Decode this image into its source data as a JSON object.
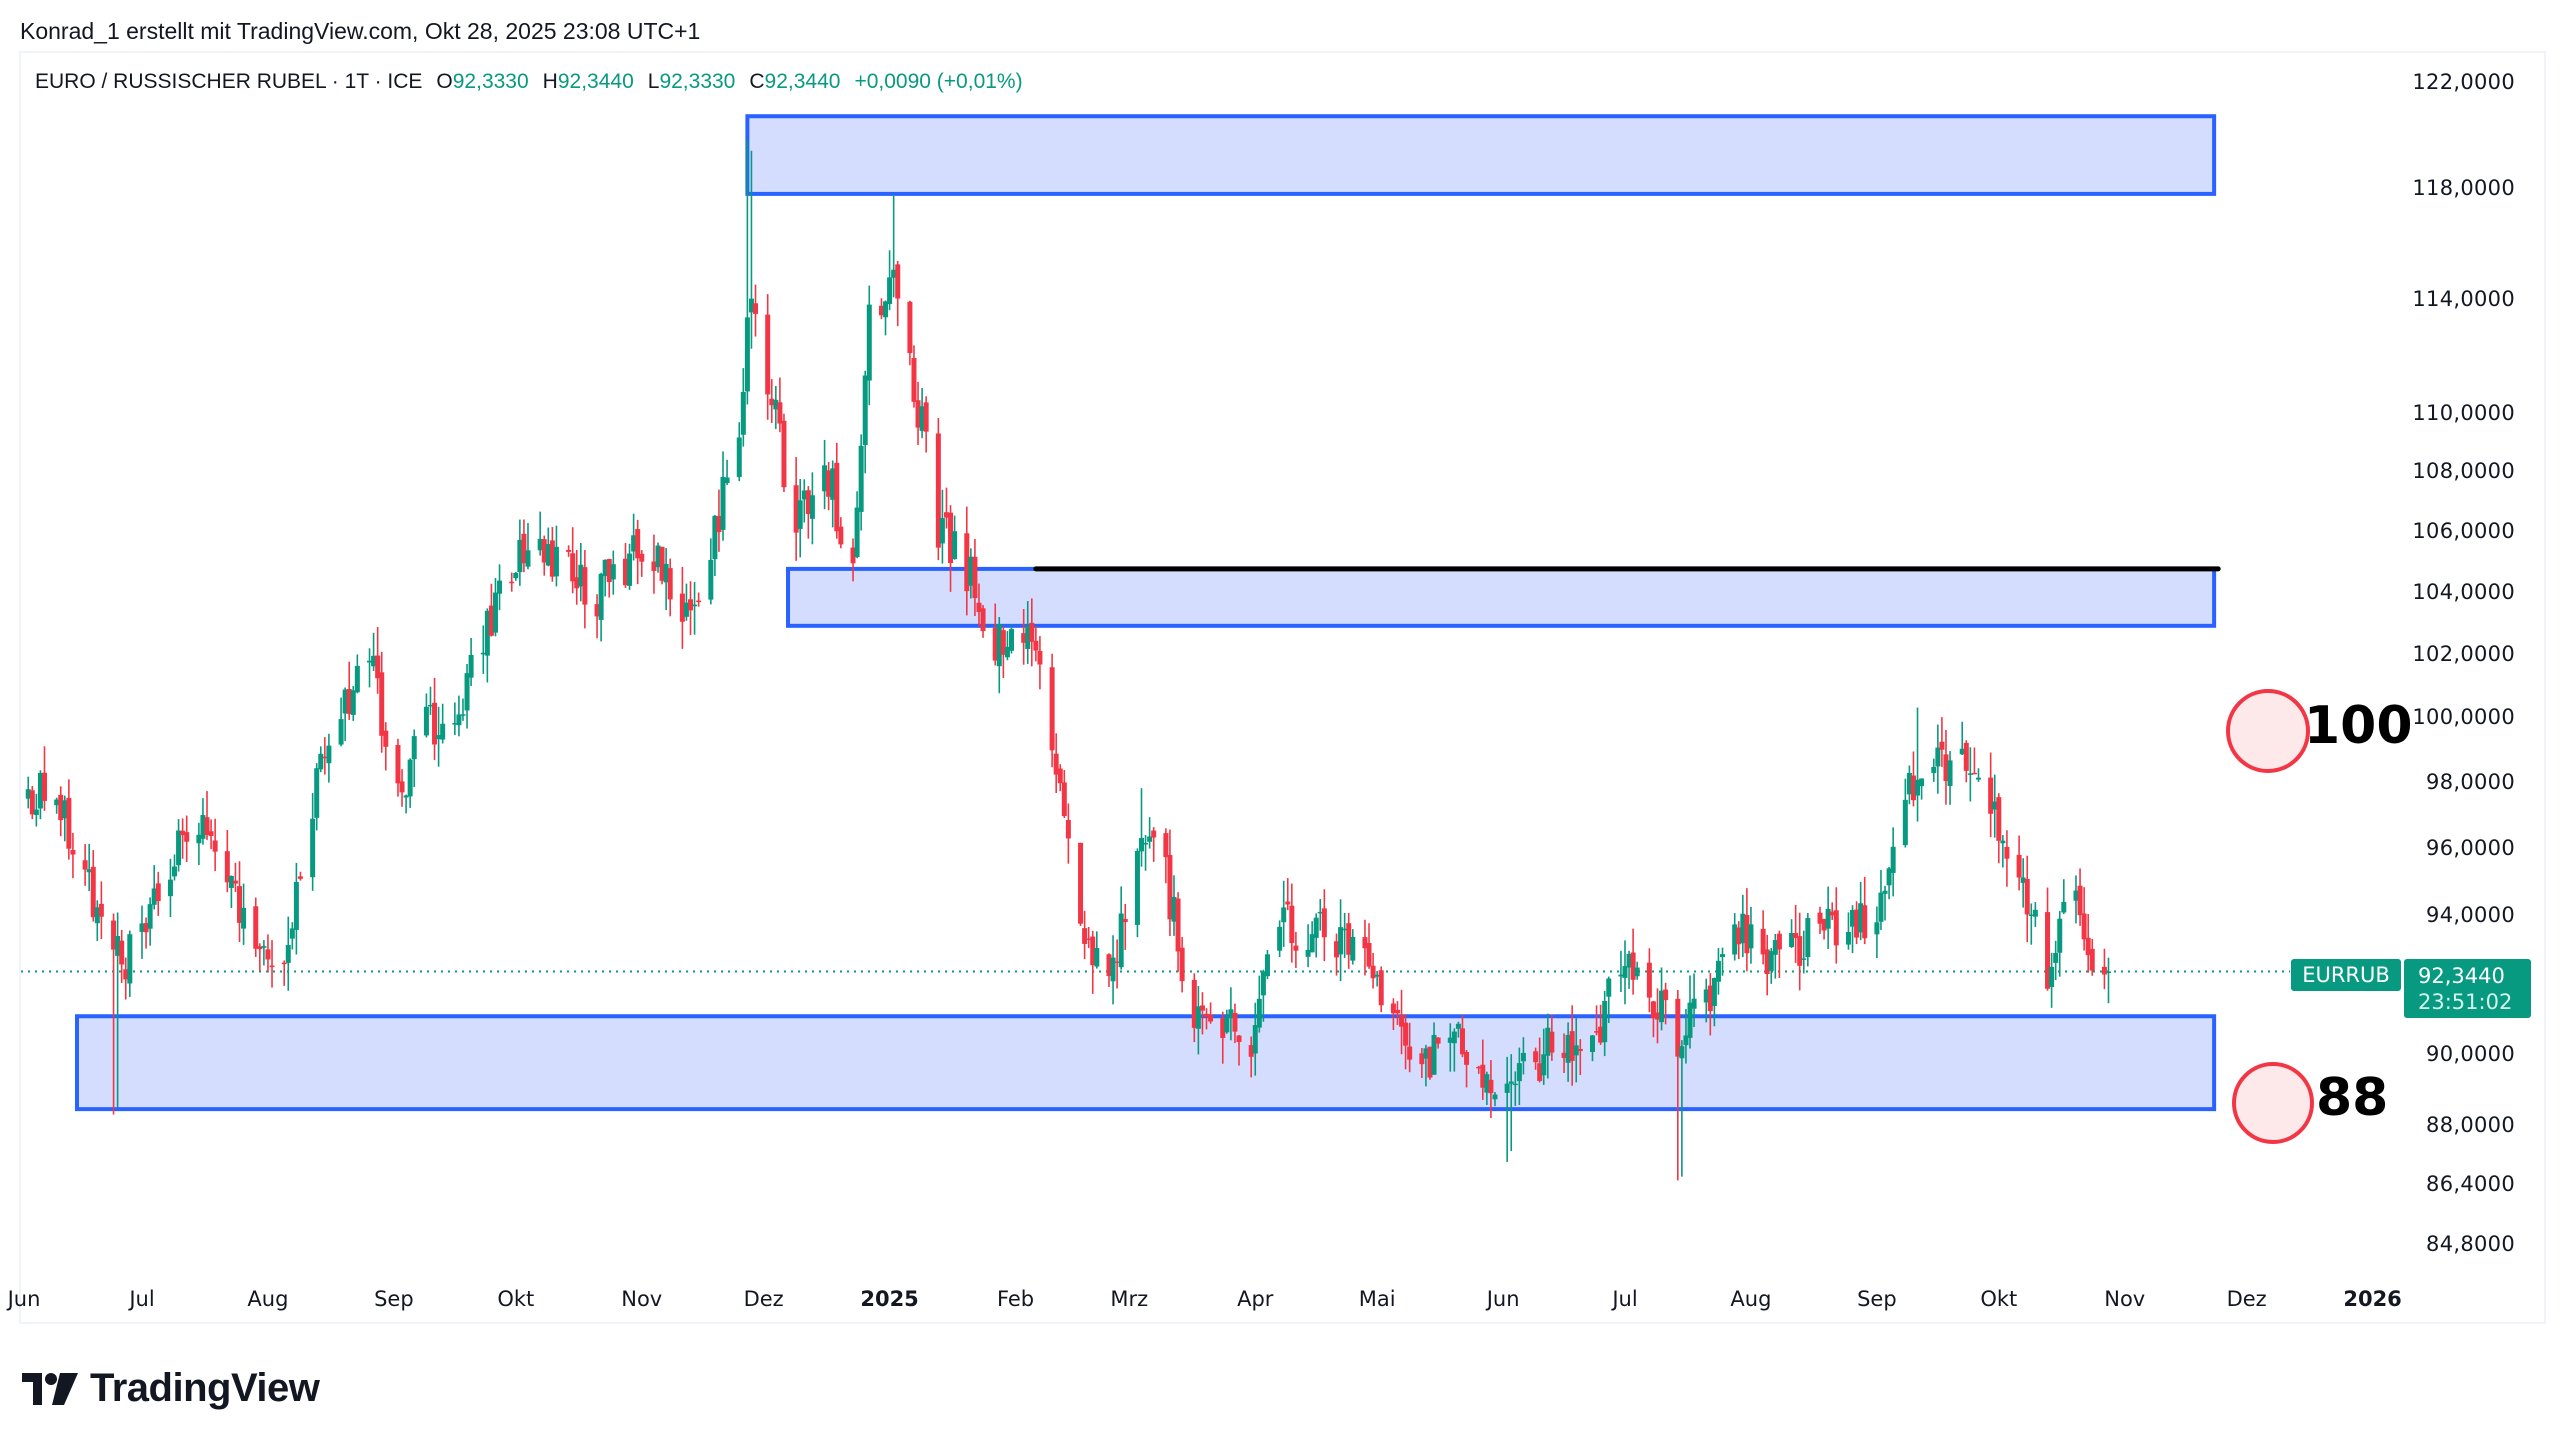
{
  "credit": "Konrad_1 erstellt mit TradingView.com, Okt 28, 2025 23:08 UTC+1",
  "title": {
    "symbol": "EURO / RUSSISCHER RUBEL · 1T · ICE",
    "o_label": "O",
    "o_value": "92,3330",
    "h_label": "H",
    "h_value": "92,3440",
    "l_label": "L",
    "l_value": "92,3330",
    "c_label": "C",
    "c_value": "92,3440",
    "change": "+0,0090 (+0,01%)"
  },
  "price_tag": {
    "symbol": "EURRUB",
    "price": "92,3440",
    "countdown": "23:51:02"
  },
  "annotations_text": {
    "upper_level": "100",
    "lower_level": "88"
  },
  "logo": {
    "text": "TradingView"
  },
  "colors": {
    "up": "#089981",
    "down": "#f23645",
    "zone_fill": "#d4ddfd",
    "zone_border": "#2962ff",
    "circle_stroke": "#f23645",
    "circle_fill": "#fde8ea",
    "line": "#000000"
  },
  "chart_data": {
    "type": "candlestick",
    "title": "EURO / RUSSISCHER RUBEL · 1T · ICE",
    "symbol": "EURRUB",
    "interval": "1T (daily)",
    "y_scale": "log",
    "ylim": [
      83.5,
      123.5
    ],
    "yticks": [
      {
        "value": 122,
        "label": "122,0000"
      },
      {
        "value": 118,
        "label": "118,0000"
      },
      {
        "value": 114,
        "label": "114,0000"
      },
      {
        "value": 110,
        "label": "110,0000"
      },
      {
        "value": 108,
        "label": "108,0000"
      },
      {
        "value": 106,
        "label": "106,0000"
      },
      {
        "value": 104,
        "label": "104,0000"
      },
      {
        "value": 102,
        "label": "102,0000"
      },
      {
        "value": 100,
        "label": "100,0000"
      },
      {
        "value": 98,
        "label": "98,0000"
      },
      {
        "value": 96,
        "label": "96,0000"
      },
      {
        "value": 94,
        "label": "94,0000"
      },
      {
        "value": 90,
        "label": "90,0000"
      },
      {
        "value": 88,
        "label": "88,0000"
      },
      {
        "value": 86.4,
        "label": "86,4000"
      },
      {
        "value": 84.8,
        "label": "84,8000"
      }
    ],
    "xticks": [
      {
        "date": "2024-06-01",
        "label": "Jun",
        "bold": false
      },
      {
        "date": "2024-07-01",
        "label": "Jul",
        "bold": false
      },
      {
        "date": "2024-08-01",
        "label": "Aug",
        "bold": false
      },
      {
        "date": "2024-09-01",
        "label": "Sep",
        "bold": false
      },
      {
        "date": "2024-10-01",
        "label": "Okt",
        "bold": false
      },
      {
        "date": "2024-11-01",
        "label": "Nov",
        "bold": false
      },
      {
        "date": "2024-12-01",
        "label": "Dez",
        "bold": false
      },
      {
        "date": "2025-01-01",
        "label": "2025",
        "bold": true
      },
      {
        "date": "2025-02-01",
        "label": "Feb",
        "bold": false
      },
      {
        "date": "2025-03-01",
        "label": "Mrz",
        "bold": false
      },
      {
        "date": "2025-04-01",
        "label": "Apr",
        "bold": false
      },
      {
        "date": "2025-05-01",
        "label": "Mai",
        "bold": false
      },
      {
        "date": "2025-06-01",
        "label": "Jun",
        "bold": false
      },
      {
        "date": "2025-07-01",
        "label": "Jul",
        "bold": false
      },
      {
        "date": "2025-08-01",
        "label": "Aug",
        "bold": false
      },
      {
        "date": "2025-09-01",
        "label": "Sep",
        "bold": false
      },
      {
        "date": "2025-10-01",
        "label": "Okt",
        "bold": false
      },
      {
        "date": "2025-11-01",
        "label": "Nov",
        "bold": false
      },
      {
        "date": "2025-12-01",
        "label": "Dez",
        "bold": false
      },
      {
        "date": "2026-01-01",
        "label": "2026",
        "bold": true
      }
    ],
    "last": {
      "date": "2025-10-28",
      "open": 92.333,
      "high": 92.344,
      "low": 92.333,
      "close": 92.344,
      "change": 0.009,
      "change_pct": 0.01
    },
    "weekly_closes": [
      [
        "2024-06-03",
        97.6
      ],
      [
        "2024-06-10",
        97.5
      ],
      [
        "2024-06-17",
        95.0
      ],
      [
        "2024-06-24",
        92.6
      ],
      [
        "2024-07-01",
        93.2
      ],
      [
        "2024-07-08",
        95.5
      ],
      [
        "2024-07-15",
        96.5
      ],
      [
        "2024-07-22",
        95.5
      ],
      [
        "2024-07-29",
        92.3
      ],
      [
        "2024-08-05",
        92.8
      ],
      [
        "2024-08-12",
        97.5
      ],
      [
        "2024-08-19",
        100.5
      ],
      [
        "2024-08-26",
        101.8
      ],
      [
        "2024-09-02",
        97.5
      ],
      [
        "2024-09-09",
        100.0
      ],
      [
        "2024-09-16",
        99.5
      ],
      [
        "2024-09-23",
        102.5
      ],
      [
        "2024-09-30",
        105.0
      ],
      [
        "2024-10-07",
        105.5
      ],
      [
        "2024-10-14",
        104.5
      ],
      [
        "2024-10-21",
        104.0
      ],
      [
        "2024-10-28",
        105.0
      ],
      [
        "2024-11-04",
        105.5
      ],
      [
        "2024-11-11",
        102.5
      ],
      [
        "2024-11-18",
        105.5
      ],
      [
        "2024-11-25",
        110.0
      ],
      [
        "2024-11-28",
        114.0
      ],
      [
        "2024-12-02",
        111.0
      ],
      [
        "2024-12-09",
        106.0
      ],
      [
        "2024-12-16",
        108.5
      ],
      [
        "2024-12-23",
        104.5
      ],
      [
        "2024-12-27",
        113.5
      ],
      [
        "2025-01-02",
        115.0
      ],
      [
        "2025-01-06",
        112.0
      ],
      [
        "2025-01-13",
        106.0
      ],
      [
        "2025-01-20",
        104.8
      ],
      [
        "2025-01-27",
        102.5
      ],
      [
        "2025-02-03",
        103.0
      ],
      [
        "2025-02-10",
        99.5
      ],
      [
        "2025-02-17",
        93.0
      ],
      [
        "2025-02-24",
        91.8
      ],
      [
        "2025-03-03",
        96.5
      ],
      [
        "2025-03-10",
        95.0
      ],
      [
        "2025-03-17",
        91.0
      ],
      [
        "2025-03-24",
        90.8
      ],
      [
        "2025-03-31",
        90.5
      ],
      [
        "2025-04-07",
        93.8
      ],
      [
        "2025-04-14",
        93.5
      ],
      [
        "2025-04-21",
        93.3
      ],
      [
        "2025-04-28",
        93.0
      ],
      [
        "2025-05-05",
        91.0
      ],
      [
        "2025-05-12",
        89.5
      ],
      [
        "2025-05-19",
        90.5
      ],
      [
        "2025-05-26",
        89.5
      ],
      [
        "2025-06-02",
        88.8
      ],
      [
        "2025-06-09",
        89.8
      ],
      [
        "2025-06-16",
        90.5
      ],
      [
        "2025-06-23",
        90.0
      ],
      [
        "2025-06-30",
        92.5
      ],
      [
        "2025-07-07",
        91.5
      ],
      [
        "2025-07-14",
        90.5
      ],
      [
        "2025-07-21",
        91.2
      ],
      [
        "2025-07-28",
        94.0
      ],
      [
        "2025-08-04",
        92.5
      ],
      [
        "2025-08-11",
        93.0
      ],
      [
        "2025-08-18",
        93.6
      ],
      [
        "2025-08-25",
        93.6
      ],
      [
        "2025-09-01",
        94.0
      ],
      [
        "2025-09-08",
        97.5
      ],
      [
        "2025-09-15",
        98.8
      ],
      [
        "2025-09-22",
        98.5
      ],
      [
        "2025-09-29",
        97.0
      ],
      [
        "2025-10-06",
        95.5
      ],
      [
        "2025-10-13",
        92.5
      ],
      [
        "2025-10-20",
        94.5
      ],
      [
        "2025-10-24",
        93.0
      ],
      [
        "2025-10-28",
        92.344
      ]
    ],
    "extremes": [
      {
        "date": "2024-06-24",
        "low": 88.3
      },
      {
        "date": "2024-06-25",
        "low": 88.5
      },
      {
        "date": "2024-11-27",
        "high": 119.8
      },
      {
        "date": "2024-11-28",
        "high": 119.4
      },
      {
        "date": "2025-01-02",
        "high": 117.8
      },
      {
        "date": "2025-03-04",
        "high": 97.8
      },
      {
        "date": "2025-06-02",
        "low": 87.0
      },
      {
        "date": "2025-06-03",
        "low": 87.3
      },
      {
        "date": "2025-07-14",
        "low": 86.5
      },
      {
        "date": "2025-07-15",
        "low": 86.6
      },
      {
        "date": "2025-09-11",
        "high": 100.3
      },
      {
        "date": "2025-09-17",
        "high": 100.0
      },
      {
        "date": "2025-10-14",
        "low": 91.3
      }
    ],
    "annotations": {
      "zones": [
        {
          "name": "upper-resistance-zone",
          "start": "2024-11-27",
          "end": "2025-11-23",
          "top": 120.7,
          "bottom": 117.8
        },
        {
          "name": "middle-zone",
          "start": "2024-12-07",
          "end": "2025-11-23",
          "top": 104.75,
          "bottom": 102.9
        },
        {
          "name": "lower-support-zone",
          "start": "2024-06-15",
          "end": "2025-11-23",
          "top": 91.06,
          "bottom": 88.45
        }
      ],
      "lines": [
        {
          "name": "horizontal-resistance-line",
          "start": "2025-02-06",
          "end": "2025-11-24",
          "price": 104.75
        }
      ],
      "markers": [
        {
          "name": "target-100",
          "price": 100,
          "label": "100",
          "date": "2025-11-27"
        },
        {
          "name": "target-88",
          "price": 88.2,
          "label": "88",
          "date": "2025-11-28"
        }
      ],
      "current_price_line": 92.344
    }
  }
}
